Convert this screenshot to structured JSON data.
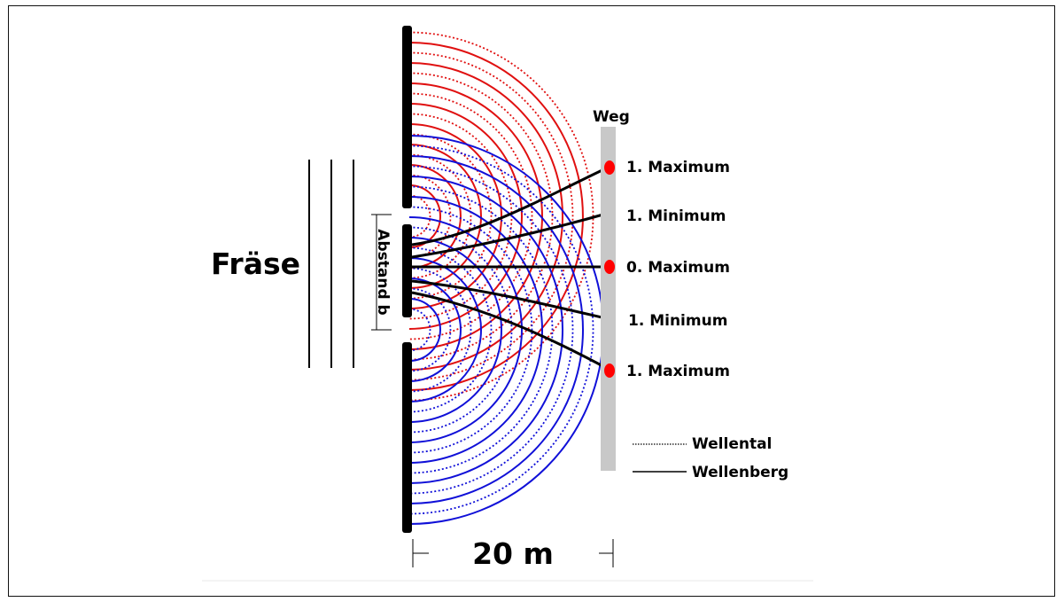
{
  "diagram": {
    "source_label": "Fräse",
    "slit_spacing_label": "Abstand b",
    "screen_label": "Weg",
    "distance_label": "20 m",
    "fringes": [
      {
        "label": "1. Maximum",
        "kind": "maximum"
      },
      {
        "label": "1. Minimum",
        "kind": "minimum"
      },
      {
        "label": "0. Maximum",
        "kind": "maximum"
      },
      {
        "label": "1. Minimum",
        "kind": "minimum"
      },
      {
        "label": "1. Maximum",
        "kind": "maximum"
      }
    ],
    "legend": {
      "trough_label": "Wellental",
      "crest_label": "Wellenberg"
    },
    "colors": {
      "wave_upper_slit": "#e01010",
      "wave_lower_slit": "#1010d8",
      "barrier": "#000000",
      "screen": "#c8c8c8",
      "maximum_marker": "#ff0000",
      "path_line": "#000000"
    }
  }
}
